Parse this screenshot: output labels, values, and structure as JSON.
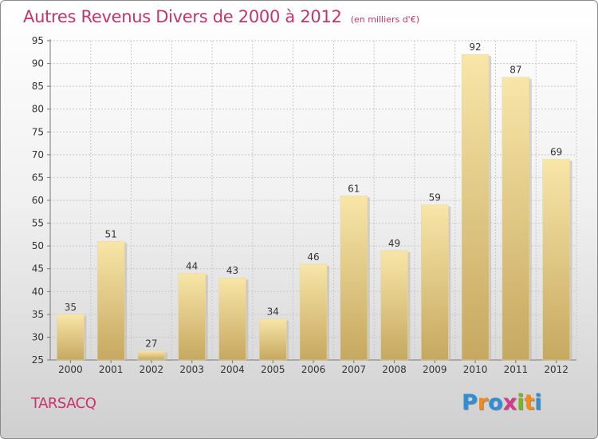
{
  "chart_data": {
    "type": "bar",
    "title": "Autres Revenus Divers de 2000 à 2012",
    "subtitle": "(en milliers d'€)",
    "xlabel": "",
    "ylabel": "",
    "categories": [
      "2000",
      "2001",
      "2002",
      "2003",
      "2004",
      "2005",
      "2006",
      "2007",
      "2008",
      "2009",
      "2010",
      "2011",
      "2012"
    ],
    "values": [
      35,
      51,
      27,
      44,
      43,
      34,
      46,
      61,
      49,
      59,
      92,
      87,
      69
    ],
    "ylim": [
      25,
      95
    ],
    "yticks": [
      25,
      30,
      35,
      40,
      45,
      50,
      55,
      60,
      65,
      70,
      75,
      80,
      85,
      90,
      95
    ],
    "grid": true,
    "legend": "none",
    "colors": {
      "bar_light": "#f7e3a2",
      "bar_dark": "#c8aa62",
      "title": "#c8336a",
      "grid": "#c8c8c8"
    }
  },
  "place": "TARSACQ",
  "brand": {
    "name": "Proxiti",
    "letters": [
      "P",
      "r",
      "o",
      "x",
      "i",
      "t",
      "i"
    ],
    "letter_colors": [
      "#2e8fd6",
      "#f28a1c",
      "#2e8fd6",
      "#d63a8a",
      "#7ab51d",
      "#f28a1c",
      "#2e8fd6"
    ]
  }
}
